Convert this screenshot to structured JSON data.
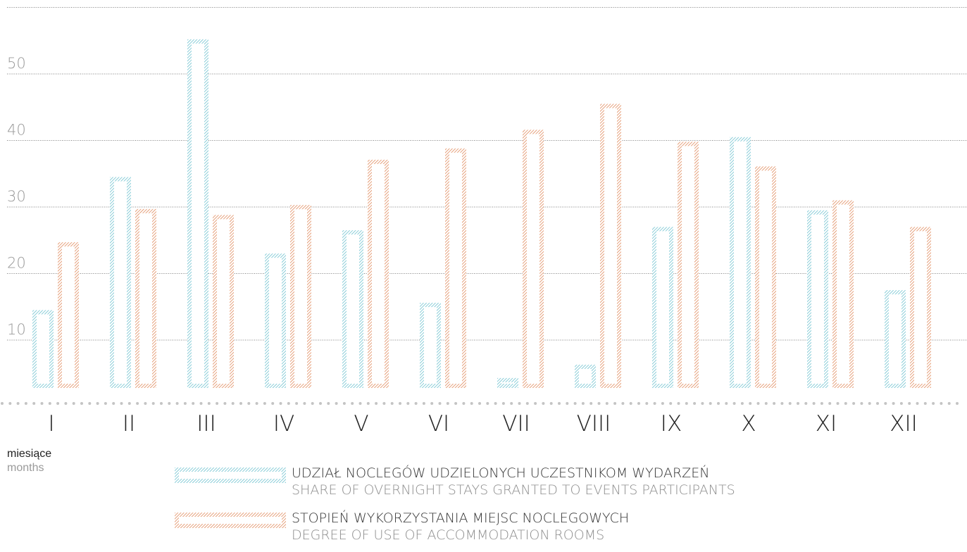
{
  "colors": {
    "series1": "#6ec1cf",
    "series2": "#e08a5c",
    "grid": "#555555",
    "tick": "#9a9a9a",
    "dots": "#c4c4c4"
  },
  "chart_data": {
    "type": "bar",
    "categories": [
      "I",
      "II",
      "III",
      "IV",
      "V",
      "VI",
      "VII",
      "VIII",
      "IX",
      "X",
      "XI",
      "XII"
    ],
    "series": [
      {
        "name": "UDZIAŁ NOCLEGÓW UDZIELONYCH UCZESTNIKOM WYDARZEŃ",
        "name_en": "SHARE OF OVERNIGHT STAYS GRANTED TO EVENTS PARTICIPANTS",
        "values": [
          14.5,
          34.5,
          55.2,
          23,
          26.5,
          15.6,
          4.3,
          6.3,
          27,
          40.5,
          29.5,
          17.5
        ]
      },
      {
        "name": "STOPIEŃ WYKORZYSTANIA MIEJSC NOCLEGOWYCH",
        "name_en": "DEGREE OF USE OF ACCOMMODATION ROOMS",
        "values": [
          24.7,
          29.7,
          28.8,
          30.3,
          37.1,
          38.8,
          41.6,
          45.5,
          39.8,
          36.1,
          31,
          27
        ]
      }
    ],
    "yticks": [
      10,
      20,
      30,
      40,
      50
    ],
    "ylim": [
      0,
      60
    ],
    "xlabel": "miesiące",
    "xlabel_en": "months",
    "grid": true,
    "legend_position": "bottom"
  },
  "legend": {
    "items": [
      {
        "pl": "UDZIAŁ NOCLEGÓW UDZIELONYCH UCZESTNIKOM WYDARZEŃ",
        "en": "SHARE OF OVERNIGHT STAYS GRANTED TO EVENTS PARTICIPANTS"
      },
      {
        "pl": "STOPIEŃ WYKORZYSTANIA MIEJSC NOCLEGOWYCH",
        "en": "DEGREE OF USE OF ACCOMMODATION ROOMS"
      }
    ]
  }
}
